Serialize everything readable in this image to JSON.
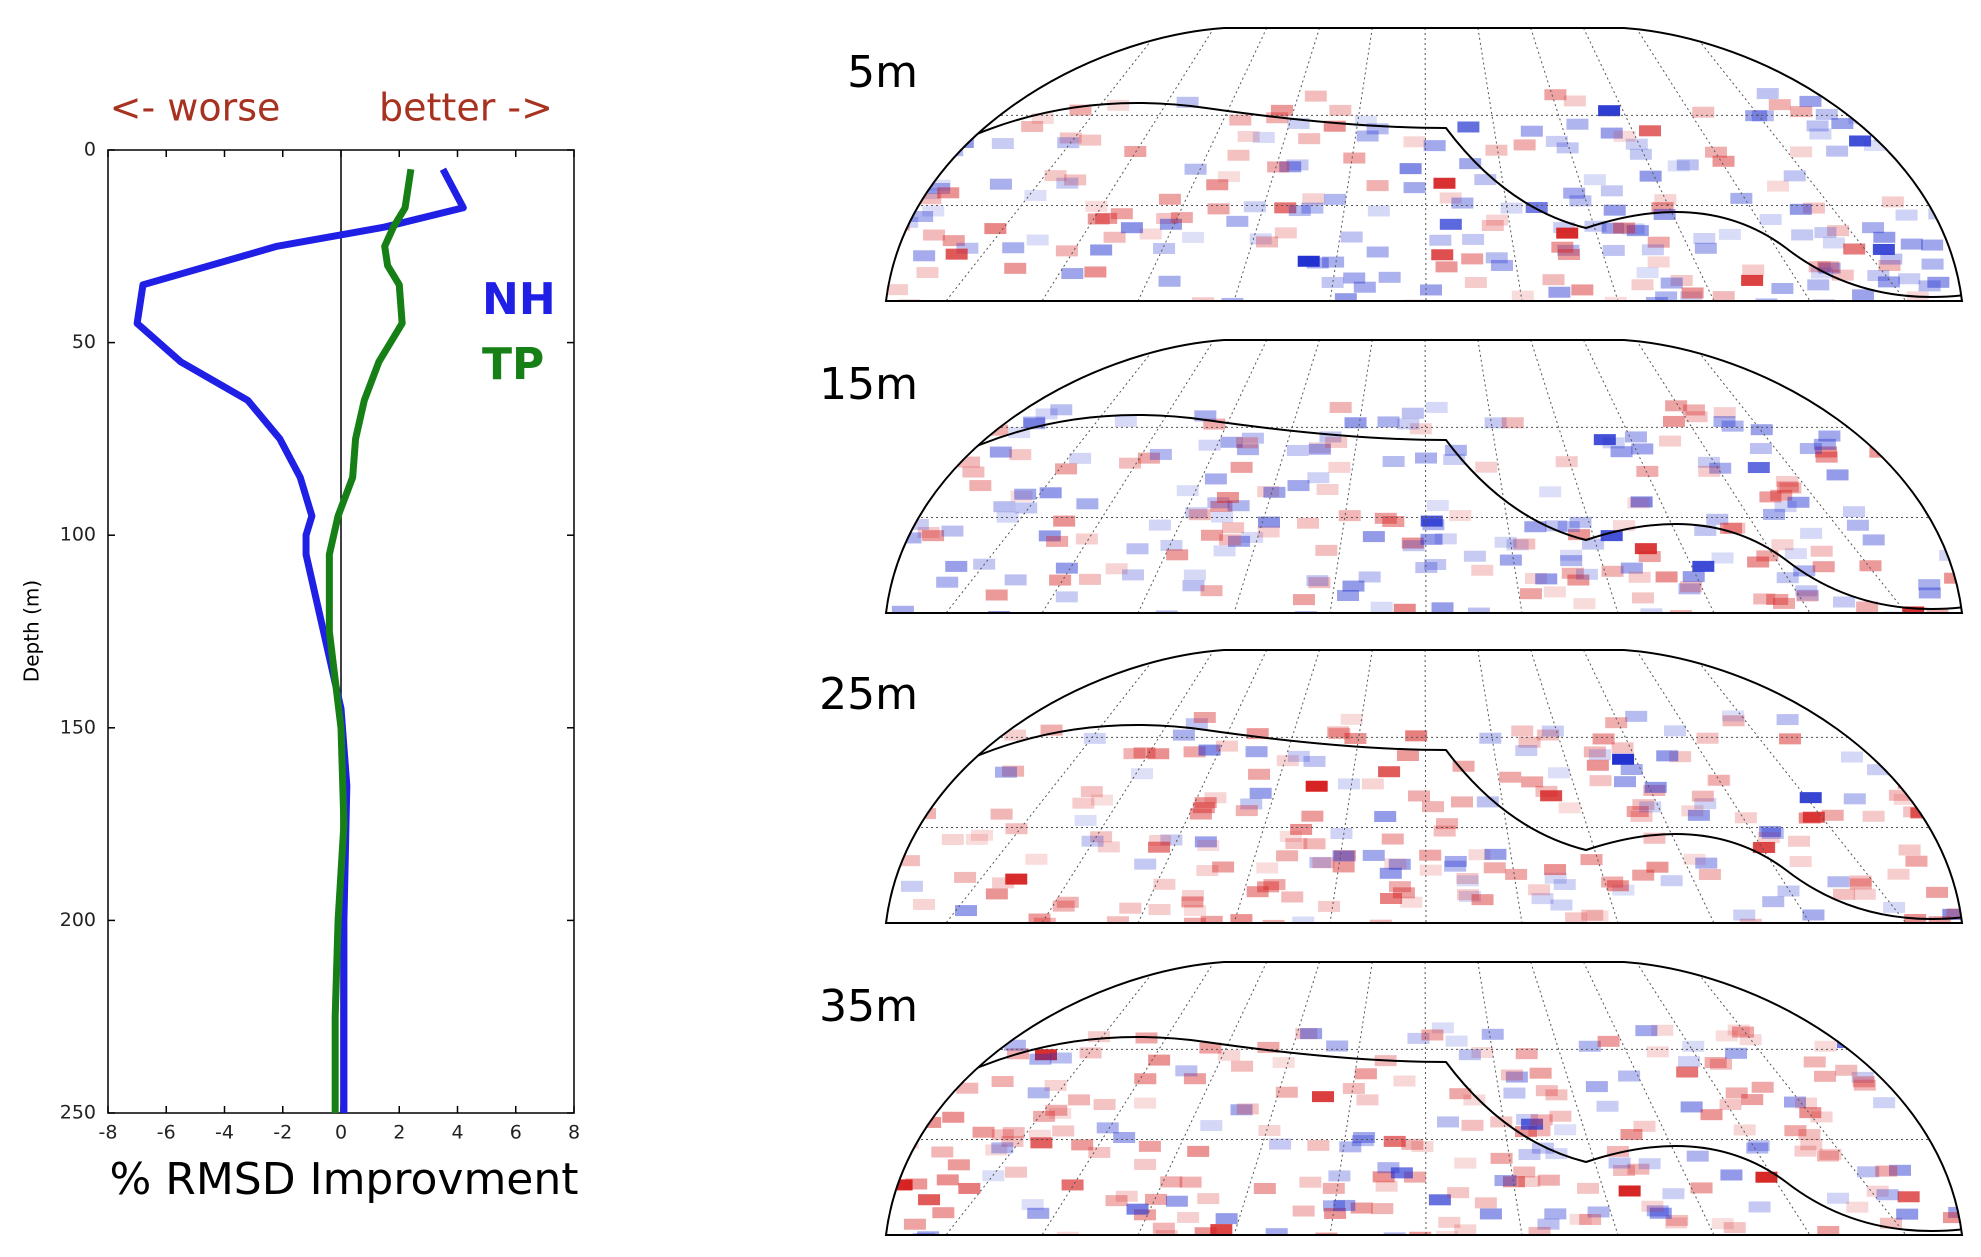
{
  "chart_data": {
    "type": "line",
    "xlabel": "% RMSD Improvment",
    "ylabel": "Depth (m)",
    "annotations": [
      "<- worse",
      "better ->"
    ],
    "xlim": [
      -8,
      8
    ],
    "ylim": [
      0,
      250
    ],
    "y_inverted": true,
    "xticks": [
      -8,
      -6,
      -4,
      -2,
      0,
      2,
      4,
      6,
      8
    ],
    "yticks": [
      0,
      50,
      100,
      150,
      200,
      250
    ],
    "series": [
      {
        "name": "NH",
        "color": "#1f1fe6",
        "depths": [
          5,
          15,
          20,
          25,
          35,
          45,
          55,
          65,
          75,
          85,
          95,
          100,
          105,
          125,
          145,
          165,
          200,
          250
        ],
        "values": [
          3.5,
          4.2,
          1.5,
          -2.2,
          -6.8,
          -7,
          -5.5,
          -3.2,
          -2.1,
          -1.4,
          -1,
          -1.2,
          -1.2,
          -0.6,
          0,
          0.2,
          0.1,
          0.1
        ]
      },
      {
        "name": "TP",
        "color": "#168016",
        "depths": [
          5,
          15,
          20,
          25,
          30,
          35,
          45,
          55,
          65,
          75,
          85,
          95,
          105,
          125,
          150,
          175,
          200,
          225,
          250
        ],
        "values": [
          2.4,
          2.2,
          1.8,
          1.5,
          1.6,
          2,
          2.1,
          1.3,
          0.8,
          0.5,
          0.4,
          -0.1,
          -0.4,
          -0.4,
          0,
          0.1,
          -0.1,
          -0.2,
          -0.2
        ]
      }
    ]
  },
  "map_panels": [
    {
      "label": "5m"
    },
    {
      "label": "15m"
    },
    {
      "label": "25m"
    },
    {
      "label": "35m"
    }
  ]
}
